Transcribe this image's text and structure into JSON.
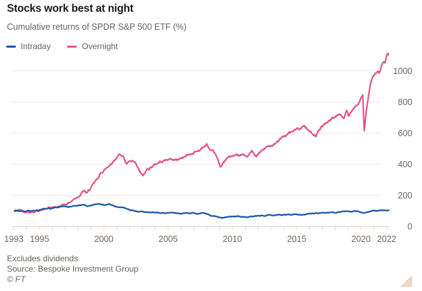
{
  "header": {
    "title": "Stocks work best at night",
    "subtitle": "Cumulative returns of SPDR S&P 500 ETF (%)"
  },
  "legend": {
    "items": [
      {
        "label": "Intraday",
        "color": "#1c57a5"
      },
      {
        "label": "Overnight",
        "color": "#e2548a"
      }
    ]
  },
  "footer": {
    "note": "Excludes dividends",
    "source": "Source: Bespoke Investment Group",
    "copyright": "© FT"
  },
  "chart_data": {
    "type": "line",
    "title": "Stocks work best at night",
    "subtitle": "Cumulative returns of SPDR S&P 500 ETF (%)",
    "x_axis": {
      "label": "",
      "range": [
        1993,
        2022.3
      ],
      "labeled_ticks": [
        1993,
        1995,
        2000,
        2005,
        2010,
        2015,
        2020,
        2022
      ],
      "minor_tick_interval_years": 1
    },
    "y_axis": {
      "label": "",
      "range": [
        0,
        1125
      ],
      "ticks": [
        0,
        200,
        400,
        600,
        800,
        1000
      ],
      "side": "right",
      "grid": true
    },
    "colors": {
      "intraday": "#1c57a5",
      "overnight": "#e2548a",
      "grid": "#f2e7dc",
      "axis": "#e2d6c9",
      "text": "#6b655f"
    },
    "legend_position": "top-left",
    "series": [
      {
        "name": "Intraday",
        "color": "#1c57a5",
        "points": [
          [
            1993.05,
            100
          ],
          [
            1994,
            98
          ],
          [
            1995,
            104
          ],
          [
            1996,
            116
          ],
          [
            1997,
            127
          ],
          [
            1998,
            133
          ],
          [
            1998.45,
            138
          ],
          [
            1998.7,
            126
          ],
          [
            1999.1,
            136
          ],
          [
            1999.6,
            142
          ],
          [
            2000.1,
            136
          ],
          [
            2000.5,
            140
          ],
          [
            2001,
            126
          ],
          [
            2001.5,
            122
          ],
          [
            2002,
            108
          ],
          [
            2002.5,
            98
          ],
          [
            2003,
            92
          ],
          [
            2004,
            88
          ],
          [
            2005,
            85
          ],
          [
            2006,
            84
          ],
          [
            2007,
            87
          ],
          [
            2008,
            80
          ],
          [
            2008.7,
            60
          ],
          [
            2009.2,
            51
          ],
          [
            2009.8,
            62
          ],
          [
            2010.4,
            66
          ],
          [
            2011.1,
            60
          ],
          [
            2012,
            67
          ],
          [
            2013,
            71
          ],
          [
            2014,
            75
          ],
          [
            2015,
            77
          ],
          [
            2016,
            79
          ],
          [
            2016.6,
            84
          ],
          [
            2017.2,
            89
          ],
          [
            2018,
            90
          ],
          [
            2018.6,
            94
          ],
          [
            2019.2,
            94
          ],
          [
            2019.6,
            96
          ],
          [
            2020.2,
            88
          ],
          [
            2020.6,
            94
          ],
          [
            2021,
            99
          ],
          [
            2021.5,
            102
          ],
          [
            2022.15,
            104
          ]
        ]
      },
      {
        "name": "Overnight",
        "color": "#e2548a",
        "points": [
          [
            1993.05,
            100
          ],
          [
            1993.5,
            104
          ],
          [
            1994,
            99
          ],
          [
            1994.5,
            97
          ],
          [
            1995,
            104
          ],
          [
            1995.5,
            110
          ],
          [
            1996,
            118
          ],
          [
            1996.5,
            128
          ],
          [
            1997,
            142
          ],
          [
            1997.5,
            165
          ],
          [
            1998,
            196
          ],
          [
            1998.4,
            228
          ],
          [
            1998.7,
            212
          ],
          [
            1999,
            245
          ],
          [
            1999.4,
            290
          ],
          [
            1999.8,
            345
          ],
          [
            2000.2,
            375
          ],
          [
            2000.6,
            410
          ],
          [
            2000.9,
            437
          ],
          [
            2001.3,
            466
          ],
          [
            2001.55,
            448
          ],
          [
            2001.75,
            400
          ],
          [
            2002.1,
            414
          ],
          [
            2002.45,
            400
          ],
          [
            2002.8,
            345
          ],
          [
            2003.05,
            318
          ],
          [
            2003.4,
            368
          ],
          [
            2003.8,
            390
          ],
          [
            2004.4,
            418
          ],
          [
            2005,
            432
          ],
          [
            2005.7,
            428
          ],
          [
            2006.5,
            458
          ],
          [
            2007.4,
            490
          ],
          [
            2008,
            524
          ],
          [
            2008.35,
            478
          ],
          [
            2008.65,
            462
          ],
          [
            2009.05,
            385
          ],
          [
            2009.7,
            444
          ],
          [
            2010.3,
            455
          ],
          [
            2010.8,
            470
          ],
          [
            2011.1,
            447
          ],
          [
            2011.5,
            477
          ],
          [
            2011.85,
            443
          ],
          [
            2012.3,
            490
          ],
          [
            2012.9,
            515
          ],
          [
            2013.4,
            545
          ],
          [
            2014,
            577
          ],
          [
            2014.7,
            610
          ],
          [
            2015.2,
            632
          ],
          [
            2015.6,
            648
          ],
          [
            2016,
            612
          ],
          [
            2016.5,
            585
          ],
          [
            2017,
            645
          ],
          [
            2017.6,
            685
          ],
          [
            2018.1,
            710
          ],
          [
            2018.4,
            722
          ],
          [
            2018.65,
            695
          ],
          [
            2018.9,
            742
          ],
          [
            2019.05,
            705
          ],
          [
            2019.4,
            750
          ],
          [
            2019.75,
            785
          ],
          [
            2020,
            835
          ],
          [
            2020.14,
            848
          ],
          [
            2020.25,
            603
          ],
          [
            2020.4,
            730
          ],
          [
            2020.55,
            820
          ],
          [
            2020.7,
            900
          ],
          [
            2020.9,
            950
          ],
          [
            2021.1,
            988
          ],
          [
            2021.3,
            1000
          ],
          [
            2021.42,
            980
          ],
          [
            2021.6,
            1032
          ],
          [
            2021.75,
            1058
          ],
          [
            2021.87,
            1042
          ],
          [
            2022,
            1090
          ],
          [
            2022.12,
            1102
          ]
        ]
      }
    ]
  }
}
